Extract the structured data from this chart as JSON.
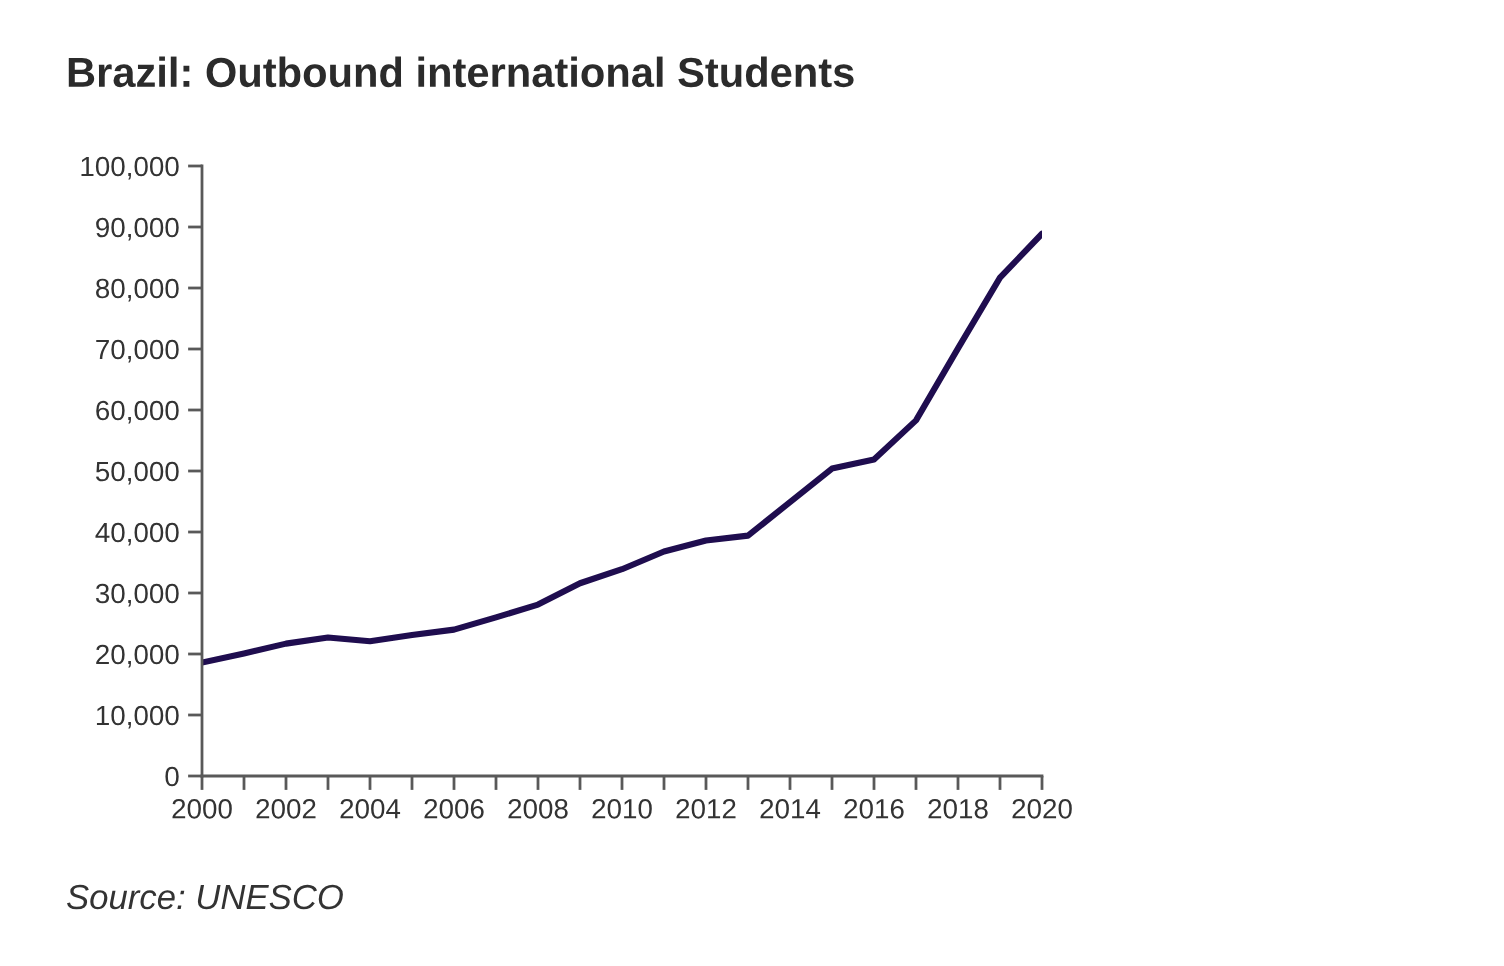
{
  "chart_data": {
    "type": "line",
    "title": "Brazil: Outbound international Students",
    "x": [
      2000,
      2001,
      2002,
      2003,
      2004,
      2005,
      2006,
      2007,
      2008,
      2009,
      2010,
      2011,
      2012,
      2013,
      2014,
      2015,
      2016,
      2017,
      2018,
      2019,
      2020
    ],
    "series": [
      {
        "color": "#1f0d4f",
        "values": [
          18600,
          20100,
          21700,
          22700,
          22100,
          23100,
          24000,
          26000,
          28100,
          31600,
          33900,
          36800,
          38600,
          39400,
          44900,
          50400,
          51900,
          58300,
          70100,
          81700,
          88900
        ]
      }
    ],
    "xlim": [
      2000,
      2020
    ],
    "xticks": [
      2000,
      {
        "value": 2001,
        "label": null
      },
      2002,
      {
        "value": 2003,
        "label": null
      },
      2004,
      {
        "value": 2005,
        "label": null
      },
      2006,
      {
        "value": 2007,
        "label": null
      },
      2008,
      {
        "value": 2009,
        "label": null
      },
      2010,
      {
        "value": 2011,
        "label": null
      },
      2012,
      {
        "value": 2013,
        "label": null
      },
      2014,
      {
        "value": 2015,
        "label": null
      },
      2016,
      {
        "value": 2017,
        "label": null
      },
      2018,
      {
        "value": 2019,
        "label": null
      },
      2020
    ],
    "ylim": [
      0,
      100000
    ],
    "yticks": [
      0,
      {
        "value": 10000,
        "label": "10,000"
      },
      {
        "value": 20000,
        "label": "20,000"
      },
      {
        "value": 30000,
        "label": "30,000"
      },
      {
        "value": 40000,
        "label": "40,000"
      },
      {
        "value": 50000,
        "label": "50,000"
      },
      {
        "value": 60000,
        "label": "60,000"
      },
      {
        "value": 70000,
        "label": "70,000"
      },
      {
        "value": 80000,
        "label": "80,000"
      },
      {
        "value": 90000,
        "label": "90,000"
      },
      {
        "value": 100000,
        "label": "100,000"
      }
    ],
    "line_style": "solid",
    "annotations": [
      "Source: UNESCO"
    ]
  }
}
